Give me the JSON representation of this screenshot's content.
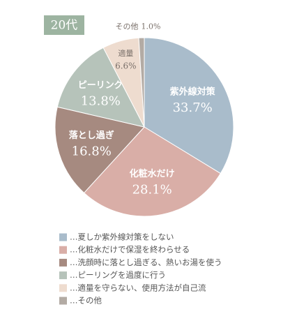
{
  "chart_data": {
    "type": "pie",
    "badge": "20代",
    "categories": [
      "紫外線対策",
      "化粧水だけ",
      "落とし過ぎ",
      "ピーリング",
      "適量",
      "その他"
    ],
    "values": [
      33.7,
      28.1,
      16.8,
      13.8,
      6.6,
      1.0
    ],
    "value_labels": [
      "33.7%",
      "28.1%",
      "16.8%",
      "13.8%",
      "6.6%",
      "1.0%"
    ],
    "colors": [
      "#a9bccb",
      "#d9aea7",
      "#a68a80",
      "#b6c3ba",
      "#eedccf",
      "#b3aba4"
    ],
    "legend": [
      "…夏しか紫外線対策をしない",
      "…化粧水だけで保湿を終わらせる",
      "…洗顔時に落とし過ぎる、熱いお湯を使う",
      "…ピーリングを過度に行う",
      "…適量を守らない、使用方法が自己流",
      "…その他"
    ]
  }
}
